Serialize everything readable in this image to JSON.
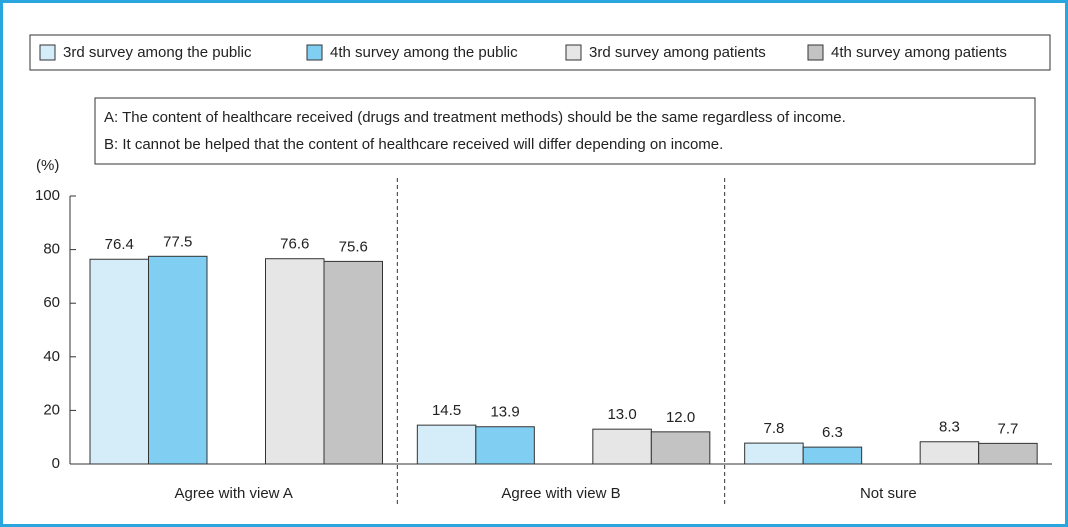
{
  "chart_data": {
    "type": "bar",
    "annotations": [
      "A: The content of healthcare received (drugs and treatment methods) should be the same regardless of income.",
      "B: It cannot be helped that the content of healthcare received will differ depending on income."
    ],
    "ylabel": "(%)",
    "categories": [
      "Agree with view A",
      "Agree with view B",
      "Not sure"
    ],
    "series": [
      {
        "name": "3rd survey among the public",
        "color": "#d5ecf9",
        "values": [
          76.4,
          14.5,
          7.8
        ],
        "value_labels": [
          "76.4",
          "14.5",
          "7.8"
        ]
      },
      {
        "name": "4th survey among the public",
        "color": "#80cff2",
        "values": [
          77.5,
          13.9,
          6.3
        ],
        "value_labels": [
          "77.5",
          "13.9",
          "6.3"
        ]
      },
      {
        "name": "3rd survey among patients",
        "color": "#e6e6e6",
        "values": [
          76.6,
          13.0,
          8.3
        ],
        "value_labels": [
          "76.6",
          "13.0",
          "8.3"
        ]
      },
      {
        "name": "4th survey among patients",
        "color": "#c3c3c3",
        "values": [
          75.6,
          12.0,
          7.7
        ],
        "value_labels": [
          "75.6",
          "12.0",
          "7.7"
        ]
      }
    ],
    "ylim": [
      0,
      100
    ],
    "yticks": [
      0,
      20,
      40,
      60,
      80,
      100
    ],
    "grid": false
  }
}
